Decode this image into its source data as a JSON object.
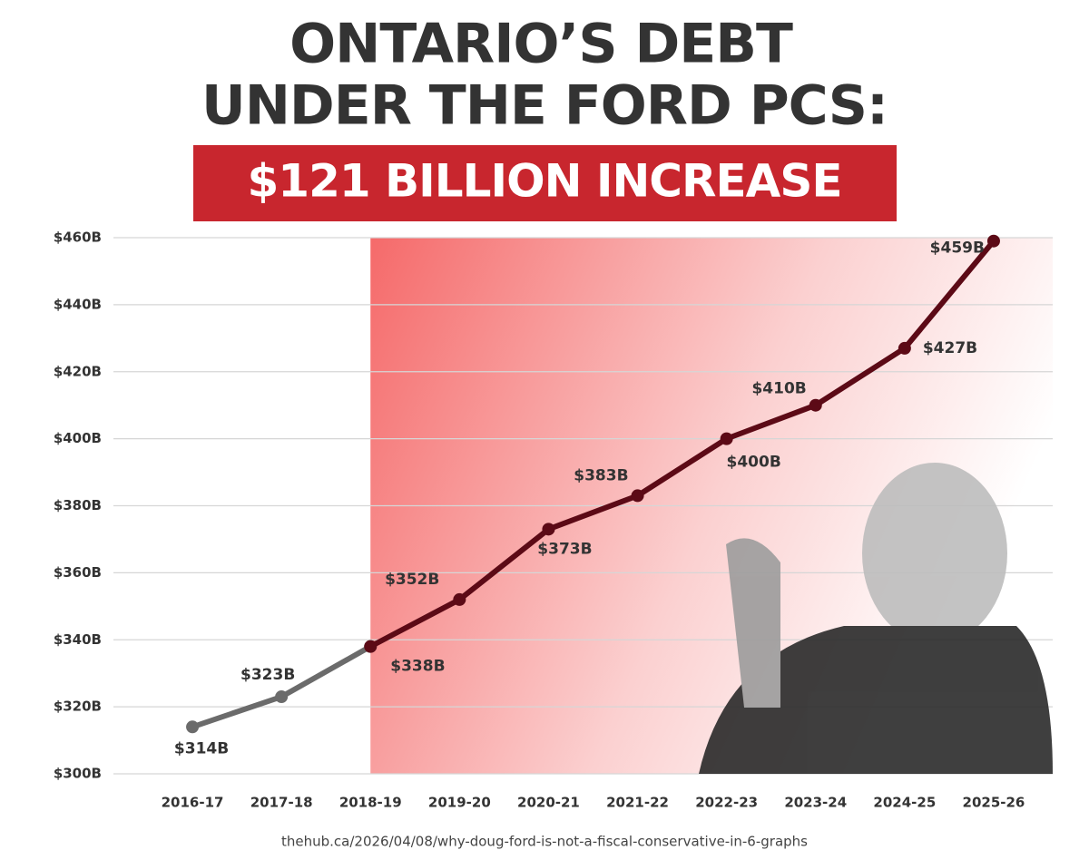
{
  "chart_data": {
    "type": "line",
    "title": [
      "ONTARIO’S DEBT",
      "UNDER THE FORD PCS:"
    ],
    "subtitle": "$121 BILLION INCREASE",
    "source": "thehub.ca/2026/04/08/why-doug-ford-is-not-a-fiscal-conservative-in-6-graphs",
    "categories": [
      "2016-17",
      "2017-18",
      "2018-19",
      "2019-20",
      "2020-21",
      "2021-22",
      "2022-23",
      "2023-24",
      "2024-25",
      "2025-26"
    ],
    "series": [
      {
        "color": "#6b6b6b",
        "values": [
          314,
          323,
          338,
          null,
          null,
          null,
          null,
          null,
          null,
          null
        ],
        "value_labels": [
          "$314B",
          "$323B",
          null,
          null,
          null,
          null,
          null,
          null,
          null,
          null
        ]
      },
      {
        "color": "#5c0a16",
        "values": [
          null,
          null,
          338,
          352,
          373,
          383,
          400,
          410,
          427,
          459
        ],
        "value_labels": [
          null,
          null,
          "$338B",
          "$352B",
          "$373B",
          "$383B",
          "$400B",
          "$410B",
          "$427B",
          "$459B"
        ]
      }
    ],
    "ylim": [
      300,
      460
    ],
    "yticks": [
      {
        "value": 300,
        "label": "$300B"
      },
      {
        "value": 320,
        "label": "$320B"
      },
      {
        "value": 340,
        "label": "$340B"
      },
      {
        "value": 360,
        "label": "$360B"
      },
      {
        "value": 380,
        "label": "$380B"
      },
      {
        "value": 400,
        "label": "$400B"
      },
      {
        "value": 420,
        "label": "$420B"
      },
      {
        "value": 440,
        "label": "$440B"
      },
      {
        "value": 460,
        "label": "$460B"
      }
    ],
    "grid": true
  }
}
